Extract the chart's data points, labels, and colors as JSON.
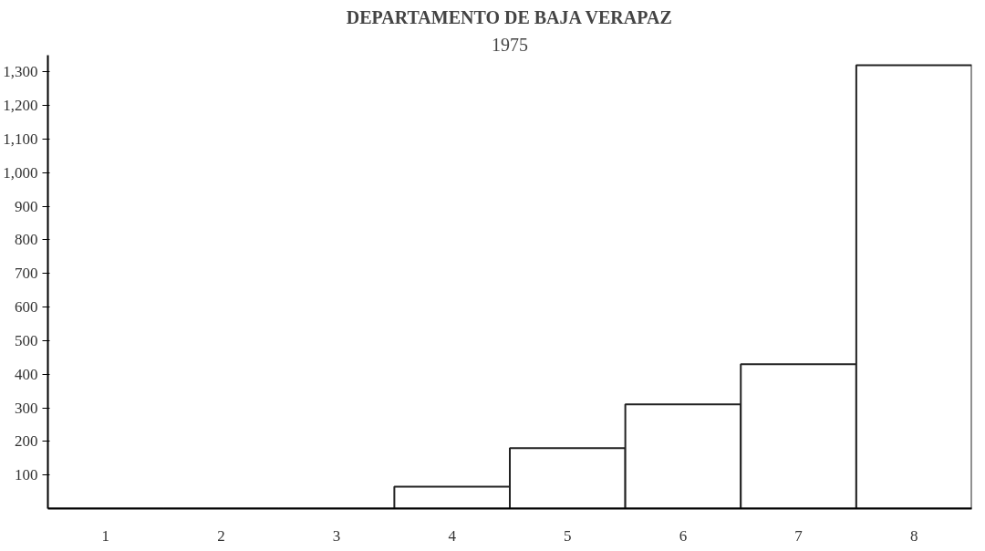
{
  "chart_data": {
    "type": "bar",
    "title": "DEPARTAMENTO DE BAJA VERAPAZ",
    "subtitle": "1975",
    "categories": [
      "1",
      "2",
      "3",
      "4",
      "5",
      "6",
      "7",
      "8"
    ],
    "values": [
      0,
      0,
      0,
      65,
      180,
      310,
      430,
      1320
    ],
    "color": "#ffffff",
    "ylim": [
      0,
      1350
    ],
    "yticks": [
      100,
      200,
      300,
      400,
      500,
      600,
      700,
      800,
      900,
      {
        "value": 1000,
        "label": "1,000"
      },
      {
        "value": 1100,
        "label": "1,100"
      },
      {
        "value": 1200,
        "label": "1,200"
      },
      {
        "value": 1300,
        "label": "1,300"
      }
    ],
    "grid": false
  }
}
